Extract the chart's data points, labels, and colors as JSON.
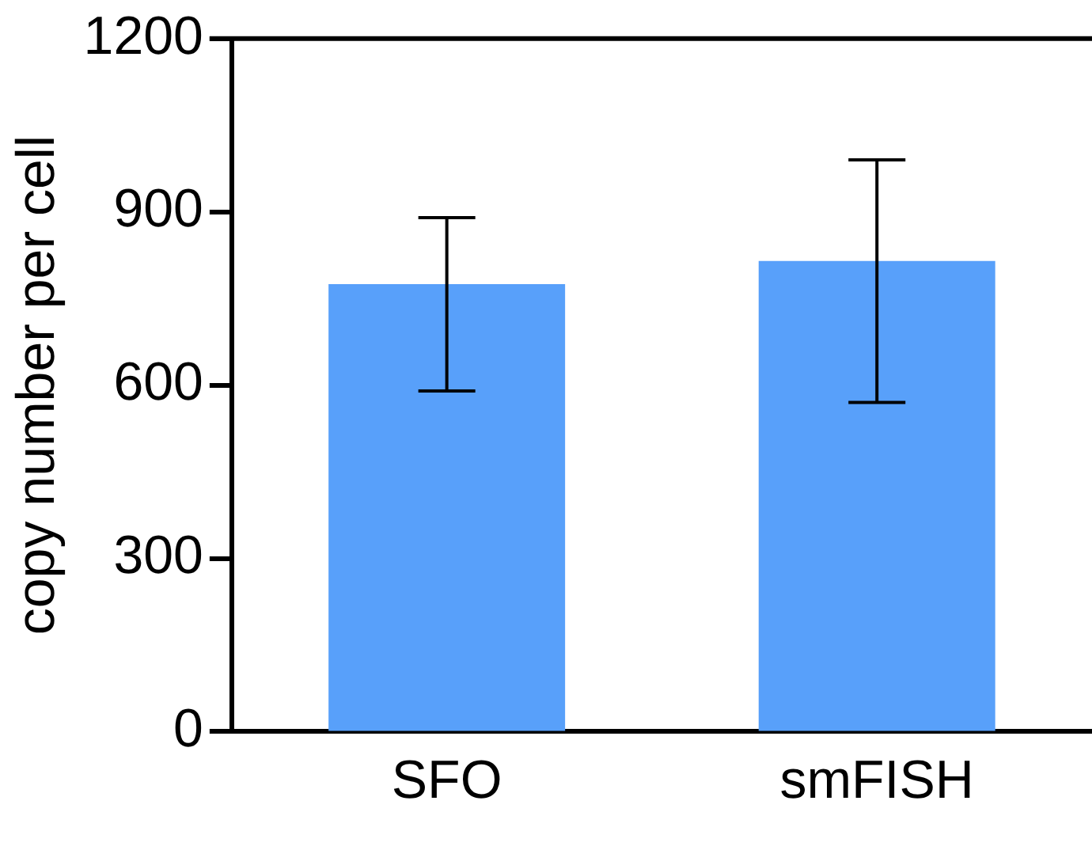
{
  "chart_data": {
    "type": "bar",
    "ylabel": "copy number per cell",
    "categories": [
      "SFO",
      "smFISH"
    ],
    "values": [
      775,
      815
    ],
    "errors": [
      [
        590,
        890
      ],
      [
        570,
        990
      ]
    ],
    "color": "#58a0fa",
    "ylim": [
      0,
      1200
    ],
    "yticks": [
      0,
      300,
      600,
      900,
      1200
    ],
    "grid": false,
    "legend": false
  }
}
